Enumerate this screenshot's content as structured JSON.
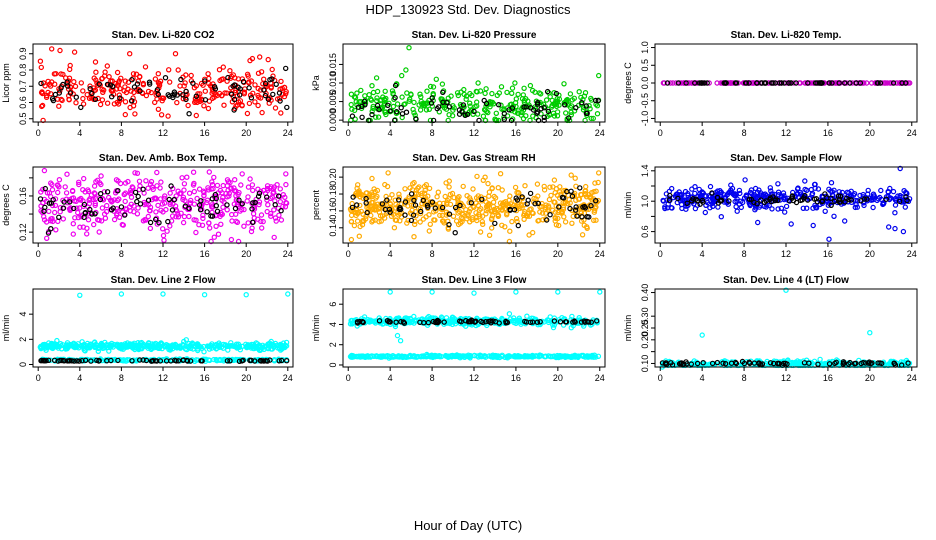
{
  "title": "HDP_130923  Std. Dev. Diagnostics",
  "x_axis_caption": "Hour of Day (UTC)",
  "chart_data": [
    {
      "type": "scatter",
      "title": "Stan. Dev. Li-820 CO2",
      "ylabel": "Licor ppm",
      "x_ticks": [
        0,
        4,
        8,
        12,
        16,
        20,
        24
      ],
      "xlim": [
        -0.5,
        24.5
      ],
      "ylim": [
        0.48,
        0.96
      ],
      "y_ticks": [
        0.5,
        0.6,
        0.7,
        0.8,
        0.9
      ],
      "y_tick_labels": [
        "0.5",
        "0.6",
        "0.7",
        "0.8",
        "0.9"
      ],
      "series": [
        {
          "color": "#ff0000",
          "base": 0.68,
          "spread": 0.08,
          "density": 300,
          "outliers": [
            [
              1.3,
              0.93
            ],
            [
              2.1,
              0.92
            ],
            [
              3.5,
              0.91
            ],
            [
              8.8,
              0.9
            ],
            [
              13.2,
              0.9
            ],
            [
              20.6,
              0.87
            ],
            [
              21.3,
              0.88
            ],
            [
              15.2,
              0.52
            ],
            [
              9.3,
              0.53
            ]
          ]
        },
        {
          "color": "#000000",
          "base": 0.67,
          "spread": 0.06,
          "density": 70,
          "outliers": [
            [
              23.8,
              0.81
            ],
            [
              23.9,
              0.57
            ],
            [
              4.1,
              0.57
            ]
          ]
        }
      ]
    },
    {
      "type": "scatter",
      "title": "Stan. Dev. Li-820 Pressure",
      "ylabel": "kPa",
      "x_ticks": [
        0,
        4,
        8,
        12,
        16,
        20,
        24
      ],
      "xlim": [
        -0.5,
        24.5
      ],
      "ylim": [
        -0.0005,
        0.0205
      ],
      "y_ticks": [
        0,
        0.005,
        0.01,
        0.015
      ],
      "y_tick_labels": [
        "0.000",
        "0.005",
        "0.010",
        "0.015"
      ],
      "series": [
        {
          "color": "#00cc00",
          "base": 0.004,
          "spread": 0.003,
          "density": 320,
          "outliers": [
            [
              5.8,
              0.0195
            ],
            [
              5.1,
              0.012
            ],
            [
              5.5,
              0.0135
            ],
            [
              8.4,
              0.011
            ],
            [
              15.9,
              0.01
            ],
            [
              23.9,
              0.012
            ]
          ]
        },
        {
          "color": "#000000",
          "base": 0.003,
          "spread": 0.0025,
          "density": 70,
          "outliers": []
        }
      ]
    },
    {
      "type": "scatter",
      "title": "Stan. Dev. Li-820 Temp.",
      "ylabel": "degrees C",
      "x_ticks": [
        0,
        4,
        8,
        12,
        16,
        20,
        24
      ],
      "xlim": [
        -0.5,
        24.5
      ],
      "ylim": [
        -1.1,
        1.1
      ],
      "y_ticks": [
        -1,
        -0.5,
        0,
        0.5,
        1
      ],
      "y_tick_labels": [
        "-1.0",
        "-0.5",
        "0.0",
        "0.5",
        "1.0"
      ],
      "series": [
        {
          "color": "#cc00cc",
          "base": 0,
          "spread": 0,
          "density": 160,
          "outliers": []
        },
        {
          "color": "#000000",
          "base": 0,
          "spread": 0,
          "density": 60,
          "outliers": []
        }
      ]
    },
    {
      "type": "scatter",
      "title": "Stan. Dev. Amb. Box Temp.",
      "ylabel": "degrees C",
      "x_ticks": [
        0,
        4,
        8,
        12,
        16,
        20,
        24
      ],
      "xlim": [
        -0.5,
        24.5
      ],
      "ylim": [
        0.108,
        0.192
      ],
      "y_ticks": [
        0.12,
        0.14,
        0.16,
        0.18
      ],
      "y_tick_labels": [
        "0.12",
        "",
        "0.16",
        ""
      ],
      "series": [
        {
          "color": "#ee00ee",
          "base": 0.15,
          "spread": 0.02,
          "density": 420,
          "outliers": [
            [
              12.1,
              0.111
            ],
            [
              0.6,
              0.188
            ]
          ]
        },
        {
          "color": "#000000",
          "base": 0.151,
          "spread": 0.012,
          "density": 70,
          "outliers": []
        }
      ]
    },
    {
      "type": "scatter",
      "title": "Stan. Dev. Gas Stream RH",
      "ylabel": "percent",
      "x_ticks": [
        0,
        4,
        8,
        12,
        16,
        20,
        24
      ],
      "xlim": [
        -0.5,
        24.5
      ],
      "ylim": [
        0.122,
        0.212
      ],
      "y_ticks": [
        0.14,
        0.16,
        0.18,
        0.2
      ],
      "y_tick_labels": [
        "0.14",
        "0.16",
        "0.18",
        "0.20"
      ],
      "series": [
        {
          "color": "#ffaa00",
          "base": 0.165,
          "spread": 0.018,
          "density": 520,
          "outliers": [
            [
              3.8,
              0.205
            ],
            [
              23.9,
              0.205
            ],
            [
              0.3,
              0.126
            ]
          ]
        },
        {
          "color": "#000000",
          "base": 0.163,
          "spread": 0.012,
          "density": 70,
          "outliers": []
        }
      ]
    },
    {
      "type": "scatter",
      "title": "Stan. Dev. Sample Flow",
      "ylabel": "ml/min",
      "x_ticks": [
        0,
        4,
        8,
        12,
        16,
        20,
        24
      ],
      "xlim": [
        -0.5,
        24.5
      ],
      "ylim": [
        0.45,
        1.45
      ],
      "y_ticks": [
        0.6,
        0.8,
        1.0,
        1.2,
        1.4
      ],
      "y_tick_labels": [
        "0.6",
        "",
        "1.0",
        "",
        "1.4"
      ],
      "series": [
        {
          "color": "#0000ee",
          "base": 1.04,
          "spread": 0.09,
          "density": 380,
          "outliers": [
            [
              16.1,
              0.5
            ],
            [
              22.9,
              1.43
            ],
            [
              23.2,
              0.6
            ],
            [
              22.4,
              0.64
            ],
            [
              14.6,
              0.68
            ],
            [
              21.8,
              0.66
            ],
            [
              9.3,
              0.72
            ],
            [
              12.5,
              0.7
            ],
            [
              17.6,
              0.74
            ],
            [
              8.1,
              1.28
            ]
          ]
        },
        {
          "color": "#000000",
          "base": 1.02,
          "spread": 0.04,
          "density": 70,
          "outliers": []
        }
      ]
    },
    {
      "type": "scatter",
      "title": "Stan. Dev. Line 2 Flow",
      "ylabel": "ml/min",
      "x_ticks": [
        0,
        4,
        8,
        12,
        16,
        20,
        24
      ],
      "xlim": [
        -0.5,
        24.5
      ],
      "ylim": [
        -0.2,
        6.0
      ],
      "y_ticks": [
        0,
        2,
        4
      ],
      "y_tick_labels": [
        "0",
        "2",
        "4"
      ],
      "series": [
        {
          "color": "#00ffff",
          "base": 1.45,
          "spread": 0.18,
          "density": 420,
          "outliers": [
            [
              4.0,
              5.5
            ],
            [
              8.0,
              5.6
            ],
            [
              12.0,
              5.6
            ],
            [
              16.0,
              5.55
            ],
            [
              20.0,
              5.55
            ],
            [
              24.0,
              5.6
            ],
            [
              1.8,
              1.9
            ]
          ]
        },
        {
          "color": "#00ffff",
          "base": 0.35,
          "spread": 0.05,
          "density": 200,
          "outliers": []
        },
        {
          "color": "#000000",
          "base": 0.3,
          "spread": 0.03,
          "density": 70,
          "outliers": []
        }
      ]
    },
    {
      "type": "scatter",
      "title": "Stan. Dev. Line 3 Flow",
      "ylabel": "ml/min",
      "x_ticks": [
        0,
        4,
        8,
        12,
        16,
        20,
        24
      ],
      "xlim": [
        -0.5,
        24.5
      ],
      "ylim": [
        -0.2,
        7.5
      ],
      "y_ticks": [
        0,
        2,
        4,
        6
      ],
      "y_tick_labels": [
        "0",
        "2",
        "4",
        "6"
      ],
      "series": [
        {
          "color": "#00ffff",
          "base": 4.3,
          "spread": 0.25,
          "density": 360,
          "outliers": [
            [
              4.0,
              7.2
            ],
            [
              8.0,
              7.2
            ],
            [
              12.0,
              7.1
            ],
            [
              16.0,
              7.2
            ],
            [
              20.0,
              7.2
            ],
            [
              24.0,
              7.2
            ],
            [
              5.0,
              2.4
            ],
            [
              4.7,
              2.9
            ]
          ]
        },
        {
          "color": "#00ffff",
          "base": 0.85,
          "spread": 0.07,
          "density": 320,
          "outliers": []
        },
        {
          "color": "#000000",
          "base": 4.25,
          "spread": 0.1,
          "density": 70,
          "outliers": []
        }
      ]
    },
    {
      "type": "scatter",
      "title": "Stan. Dev. Line 4 (LT) Flow",
      "ylabel": "ml/min",
      "x_ticks": [
        0,
        4,
        8,
        12,
        16,
        20,
        24
      ],
      "xlim": [
        -0.5,
        24.5
      ],
      "ylim": [
        0.085,
        0.415
      ],
      "y_ticks": [
        0.1,
        0.15,
        0.2,
        0.25,
        0.3,
        0.4
      ],
      "y_tick_labels": [
        "0.10",
        "",
        "0.20",
        "0.25",
        "0.30",
        "0.40"
      ],
      "series": [
        {
          "color": "#00ffff",
          "base": 0.098,
          "spread": 0.008,
          "density": 320,
          "outliers": [
            [
              12.0,
              0.41
            ],
            [
              4.0,
              0.22
            ],
            [
              20.0,
              0.23
            ],
            [
              0.2,
              0.085
            ]
          ]
        },
        {
          "color": "#000000",
          "base": 0.1,
          "spread": 0.004,
          "density": 70,
          "outliers": []
        }
      ]
    }
  ]
}
